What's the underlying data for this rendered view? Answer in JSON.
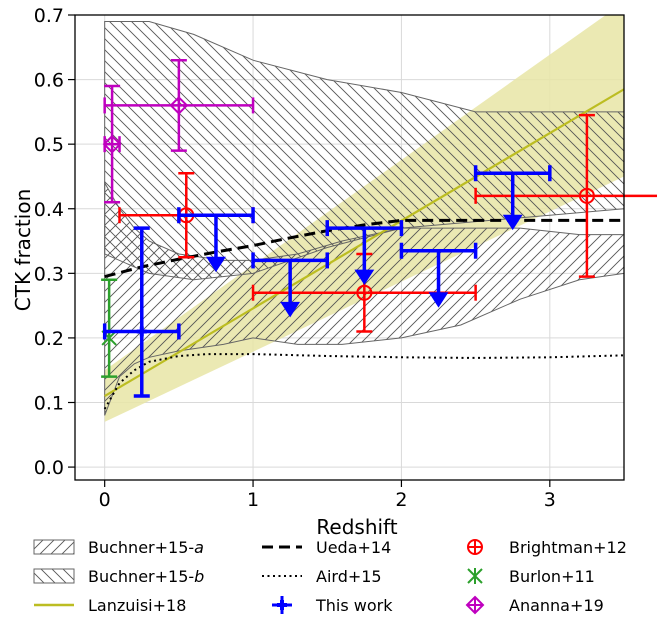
{
  "chart_data": {
    "type": "scatter",
    "xlabel": "Redshift",
    "ylabel": "CTK fraction",
    "xlim": [
      -0.2,
      3.5
    ],
    "ylim": [
      -0.02,
      0.7
    ],
    "x_ticks": [
      0,
      1,
      2,
      3
    ],
    "y_ticks": [
      0.0,
      0.1,
      0.2,
      0.3,
      0.4,
      0.5,
      0.6,
      0.7
    ],
    "x_tick_labels": [
      "0",
      "1",
      "2",
      "3"
    ],
    "y_tick_labels": [
      "0.0",
      "0.1",
      "0.2",
      "0.3",
      "0.4",
      "0.5",
      "0.6",
      "0.7"
    ],
    "grid": true,
    "legend": "bottom, outside plot, 3 columns",
    "series": [
      {
        "name": "Buchner+15-a",
        "kind": "band",
        "hatch": "////",
        "color": "#555555",
        "x": [
          0.0,
          0.1,
          0.2,
          0.3,
          0.5,
          0.8,
          1.0,
          1.3,
          1.6,
          2.0,
          2.4,
          2.8,
          3.2,
          3.5
        ],
        "lower": [
          0.08,
          0.14,
          0.16,
          0.17,
          0.18,
          0.19,
          0.2,
          0.19,
          0.19,
          0.2,
          0.22,
          0.26,
          0.29,
          0.3
        ],
        "upper": [
          0.44,
          0.4,
          0.37,
          0.35,
          0.33,
          0.32,
          0.32,
          0.33,
          0.35,
          0.37,
          0.37,
          0.37,
          0.36,
          0.36
        ]
      },
      {
        "name": "Buchner+15-b",
        "kind": "band",
        "hatch": "\\\\\\\\",
        "color": "#555555",
        "x": [
          0.0,
          0.3,
          0.6,
          1.0,
          1.5,
          2.0,
          2.5,
          3.0,
          3.5
        ],
        "lower": [
          0.33,
          0.3,
          0.29,
          0.3,
          0.34,
          0.37,
          0.38,
          0.39,
          0.4
        ],
        "upper": [
          0.69,
          0.69,
          0.67,
          0.63,
          0.6,
          0.58,
          0.55,
          0.55,
          0.55
        ]
      },
      {
        "name": "Lanzuisi+18",
        "kind": "line_band",
        "color": "#bcbd22",
        "band_color": "#e7e5a6",
        "x": [
          0.0,
          3.5
        ],
        "y": [
          0.11,
          0.585
        ],
        "lower": [
          0.07,
          0.45
        ],
        "upper": [
          0.15,
          0.72
        ]
      },
      {
        "name": "Ueda+14",
        "kind": "line",
        "style": "dashed",
        "color": "#000000",
        "x": [
          0.0,
          0.25,
          0.5,
          0.75,
          1.0,
          1.25,
          1.5,
          1.75,
          2.0,
          2.5,
          3.0,
          3.5
        ],
        "y": [
          0.295,
          0.31,
          0.322,
          0.333,
          0.343,
          0.355,
          0.366,
          0.375,
          0.382,
          0.382,
          0.382,
          0.382
        ]
      },
      {
        "name": "Aird+15",
        "kind": "line",
        "style": "dotted",
        "color": "#000000",
        "x": [
          0.0,
          0.05,
          0.1,
          0.2,
          0.3,
          0.5,
          0.7,
          1.0,
          1.5,
          2.0,
          2.5,
          3.0,
          3.5
        ],
        "y": [
          0.09,
          0.11,
          0.13,
          0.15,
          0.163,
          0.172,
          0.175,
          0.175,
          0.172,
          0.17,
          0.169,
          0.17,
          0.173
        ]
      },
      {
        "name": "This work",
        "kind": "errorbar",
        "marker": "plus",
        "color": "#0000ff",
        "points": [
          {
            "x": 0.25,
            "y": 0.21,
            "xerr": [
              0.25,
              0.25
            ],
            "yerr": [
              0.1,
              0.16
            ],
            "upper_limit": false
          },
          {
            "x": 0.75,
            "y": 0.39,
            "xerr": [
              0.25,
              0.25
            ],
            "yerr": [
              0,
              0
            ],
            "upper_limit": true
          },
          {
            "x": 1.25,
            "y": 0.32,
            "xerr": [
              0.25,
              0.25
            ],
            "yerr": [
              0,
              0
            ],
            "upper_limit": true
          },
          {
            "x": 1.75,
            "y": 0.37,
            "xerr": [
              0.25,
              0.25
            ],
            "yerr": [
              0,
              0
            ],
            "upper_limit": true
          },
          {
            "x": 2.25,
            "y": 0.335,
            "xerr": [
              0.25,
              0.25
            ],
            "yerr": [
              0,
              0
            ],
            "upper_limit": true
          },
          {
            "x": 2.75,
            "y": 0.455,
            "xerr": [
              0.25,
              0.25
            ],
            "yerr": [
              0,
              0
            ],
            "upper_limit": true
          }
        ]
      },
      {
        "name": "Brightman+12",
        "kind": "errorbar",
        "marker": "circle-plus",
        "color": "#ff0000",
        "points": [
          {
            "x": 0.55,
            "y": 0.39,
            "xerr": [
              0.45,
              0.45
            ],
            "yerr": [
              0.065,
              0.065
            ]
          },
          {
            "x": 1.75,
            "y": 0.27,
            "xerr": [
              0.75,
              0.75
            ],
            "yerr": [
              0.06,
              0.06
            ]
          },
          {
            "x": 3.25,
            "y": 0.42,
            "xerr": [
              0.75,
              0.75
            ],
            "yerr": [
              0.125,
              0.125
            ]
          }
        ]
      },
      {
        "name": "Burlon+11",
        "kind": "errorbar",
        "marker": "asterisk",
        "color": "#2ca02c",
        "points": [
          {
            "x": 0.03,
            "y": 0.2,
            "xerr": [
              0,
              0
            ],
            "yerr": [
              0.06,
              0.09
            ]
          }
        ]
      },
      {
        "name": "Ananna+19",
        "kind": "errorbar",
        "marker": "diamond-plus",
        "color": "#bf00bf",
        "points": [
          {
            "x": 0.05,
            "y": 0.5,
            "xerr": [
              0.05,
              0.05
            ],
            "yerr": [
              0.09,
              0.09
            ]
          },
          {
            "x": 0.5,
            "y": 0.56,
            "xerr": [
              0.5,
              0.5
            ],
            "yerr": [
              0.07,
              0.07
            ]
          }
        ]
      }
    ],
    "legend_entries": [
      {
        "name": "Buchner+15-a",
        "prefix": "Buchner+15-",
        "suffix": "a",
        "icon": "hatch-forward"
      },
      {
        "name": "Buchner+15-b",
        "prefix": "Buchner+15-",
        "suffix": "b",
        "icon": "hatch-backward"
      },
      {
        "name": "Lanzuisi+18",
        "prefix": "Lanzuisi+18",
        "suffix": "",
        "icon": "olive-line"
      },
      {
        "name": "Ueda+14",
        "prefix": "Ueda+14",
        "suffix": "",
        "icon": "dashed-line"
      },
      {
        "name": "Aird+15",
        "prefix": "Aird+15",
        "suffix": "",
        "icon": "dotted-line"
      },
      {
        "name": "This work",
        "prefix": "This work",
        "suffix": "",
        "icon": "blue-plus"
      },
      {
        "name": "Brightman+12",
        "prefix": "Brightman+12",
        "suffix": "",
        "icon": "red-circle-plus"
      },
      {
        "name": "Burlon+11",
        "prefix": "Burlon+11",
        "suffix": "",
        "icon": "green-asterisk"
      },
      {
        "name": "Ananna+19",
        "prefix": "Ananna+19",
        "suffix": "",
        "icon": "magenta-diamond-plus"
      }
    ]
  }
}
